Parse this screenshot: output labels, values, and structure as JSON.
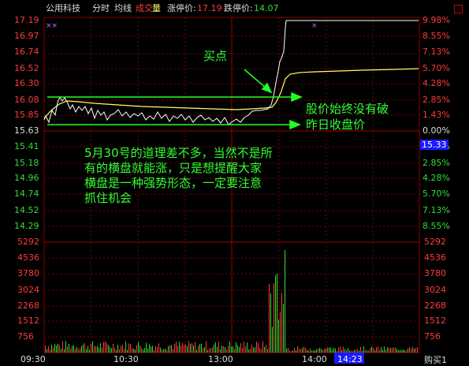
{
  "header": {
    "stock_name": "公用科技",
    "mode": "分时",
    "avg_label": "均线",
    "vol_label_1": "成交",
    "vol_label_2": "量",
    "limit_up_label": "涨停价:",
    "limit_up_value": "17.19",
    "limit_down_label": "跌停价:",
    "limit_down_value": "14.07"
  },
  "price_axis_left": [
    "17.19",
    "16.97",
    "16.74",
    "16.52",
    "16.30",
    "16.08",
    "15.85",
    "15.63",
    "15.41",
    "15.18",
    "14.96",
    "14.74",
    "14.52",
    "14.29"
  ],
  "pct_axis_right": [
    "9.98%",
    "8.55%",
    "7.13%",
    "5.70%",
    "4.28%",
    "2.85%",
    "1.43%",
    "0.00%",
    "1.43%",
    "2.85%",
    "4.28%",
    "5.70%",
    "7.13%",
    "8.55%"
  ],
  "volume_axis": [
    "5292",
    "4536",
    "3780",
    "3024",
    "2268",
    "1512",
    "756"
  ],
  "current_price": "15.33",
  "time_axis": [
    "09:30",
    "10:30",
    "13:00",
    "14:00"
  ],
  "cursor_time": "14:23",
  "bottom_right_label": "购买1",
  "annotations": {
    "buy_point": "买点",
    "note_line1": "股价始终没有破",
    "note_line2": "昨日收盘价",
    "main_text": [
      "5月30号的道理差不多，当然不是所",
      "有的横盘就能涨，只是想提醒大家",
      "横盘是一种强势形态，一定要注意",
      "抓住机会"
    ]
  },
  "colors": {
    "up": "#ff3b3b",
    "down": "#33dd33",
    "price_line": "#ffffff",
    "avg_line": "#ffff66",
    "annotation": "#33ff33",
    "cursor_box": "#1a1aff"
  }
}
